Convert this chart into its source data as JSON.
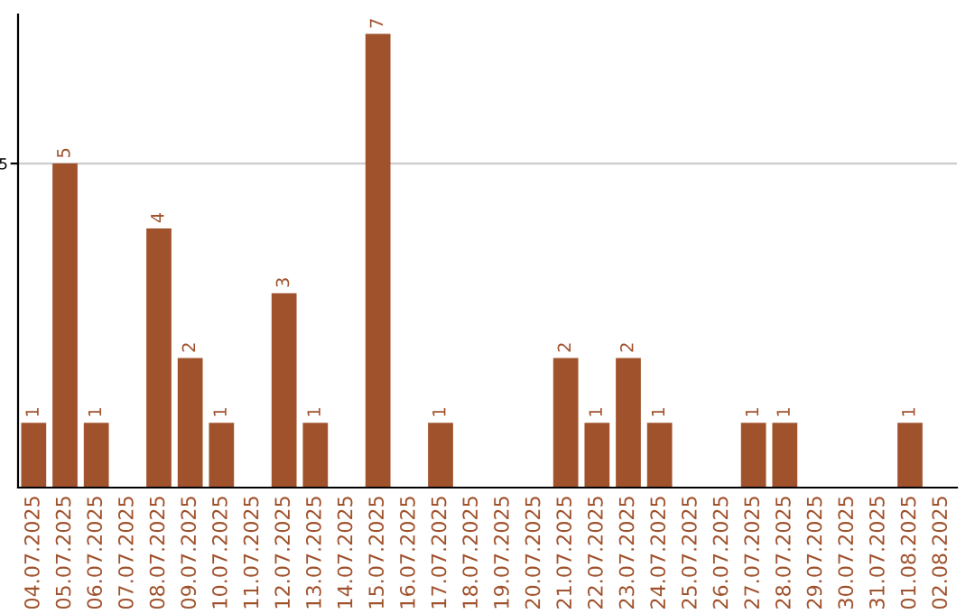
{
  "chart_data": {
    "type": "bar",
    "categories": [
      "04.07.2025",
      "05.07.2025",
      "06.07.2025",
      "07.07.2025",
      "08.07.2025",
      "09.07.2025",
      "10.07.2025",
      "11.07.2025",
      "12.07.2025",
      "13.07.2025",
      "14.07.2025",
      "15.07.2025",
      "16.07.2025",
      "17.07.2025",
      "18.07.2025",
      "19.07.2025",
      "20.07.2025",
      "21.07.2025",
      "22.07.2025",
      "23.07.2025",
      "24.07.2025",
      "25.07.2025",
      "26.07.2025",
      "27.07.2025",
      "28.07.2025",
      "29.07.2025",
      "30.07.2025",
      "31.07.2025",
      "01.08.2025",
      "02.08.2025"
    ],
    "values": [
      1,
      5,
      1,
      0,
      4,
      2,
      1,
      0,
      3,
      1,
      0,
      7,
      0,
      1,
      0,
      0,
      0,
      2,
      1,
      2,
      1,
      0,
      0,
      1,
      1,
      0,
      0,
      0,
      1,
      0
    ],
    "value_labels": [
      "1",
      "5",
      "1",
      null,
      "4",
      "2",
      "1",
      null,
      "3",
      "1",
      null,
      "7",
      null,
      "1",
      null,
      null,
      null,
      "2",
      "1",
      "2",
      "1",
      null,
      null,
      "1",
      "1",
      null,
      null,
      null,
      "1",
      null
    ],
    "color": "#a0522d",
    "ylim": [
      0,
      7.3
    ],
    "yticks": [
      5
    ],
    "grid": "y"
  }
}
